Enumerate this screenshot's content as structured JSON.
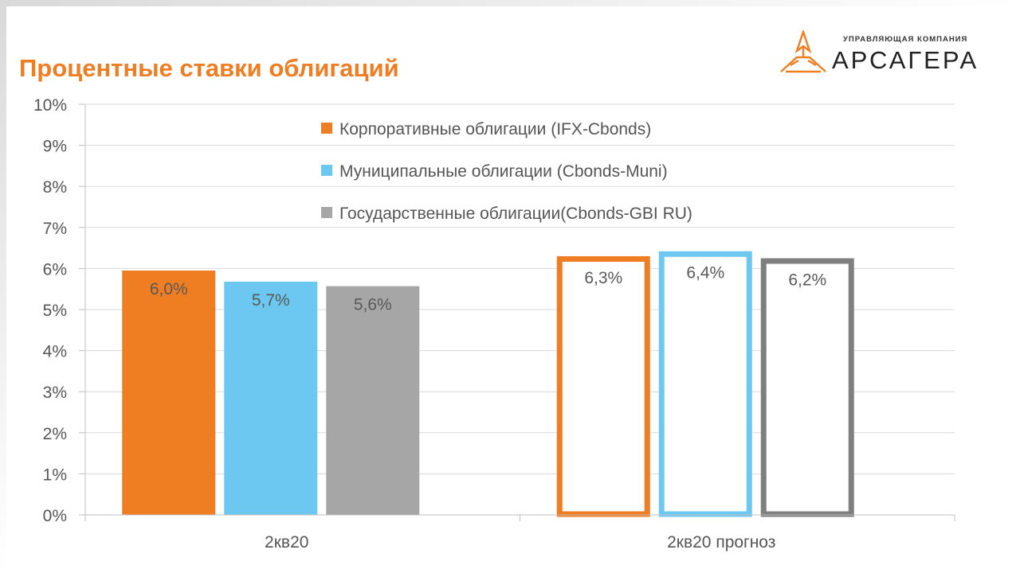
{
  "page": {
    "title": "Процентные ставки облигаций"
  },
  "logo": {
    "caption": "УПРАВЛЯЮЩАЯ КОМПАНИЯ",
    "name": "АРСАГЕРА",
    "color": "#ef7d22",
    "icon": "arsagera-logo-icon"
  },
  "chart_data": {
    "type": "bar",
    "categories": [
      "2кв20",
      "2кв20 прогноз"
    ],
    "series": [
      {
        "name": "Корпоративные облигации (IFX-Cbonds)",
        "color": "#ef7d22",
        "values": [
          5.95,
          6.3
        ],
        "labels": [
          "6,0%",
          "6,3%"
        ]
      },
      {
        "name": "Муниципальные облигации (Cbonds-Muni)",
        "color": "#6cc8f0",
        "values": [
          5.68,
          6.42
        ],
        "labels": [
          "5,7%",
          "6,4%"
        ]
      },
      {
        "name": "Государственные облигации(Cbonds-GBI RU)",
        "color": "#a6a6a6",
        "label_color_forecast": "#7f7f7f",
        "values": [
          5.57,
          6.25
        ],
        "labels": [
          "5,6%",
          "6,2%"
        ]
      }
    ],
    "styles": [
      "filled",
      "outline"
    ],
    "yticks": [
      "0%",
      "1%",
      "2%",
      "3%",
      "4%",
      "5%",
      "6%",
      "7%",
      "8%",
      "9%",
      "10%"
    ],
    "ylim": [
      0,
      10
    ],
    "grid": true,
    "legend": "top-center"
  }
}
